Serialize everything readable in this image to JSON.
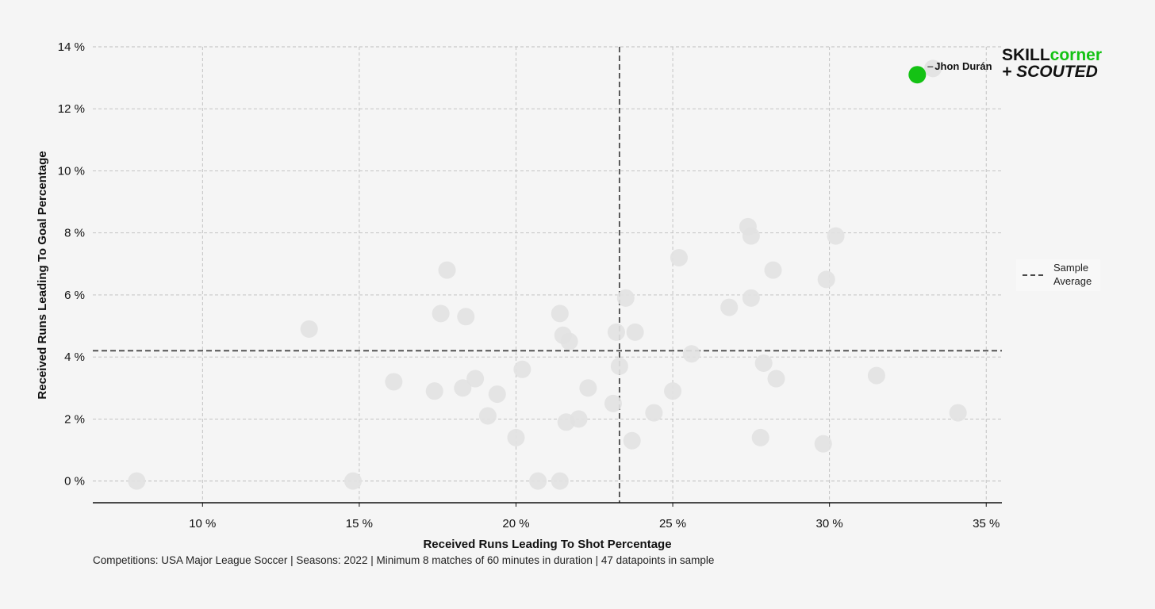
{
  "chart_data": {
    "type": "scatter",
    "title": "",
    "xlabel": "Received Runs Leading To Shot Percentage",
    "ylabel": "Received Runs Leading To Goal Percentage",
    "xlim": [
      6.5,
      35.5
    ],
    "ylim": [
      -0.7,
      14
    ],
    "x_ticks": [
      10,
      15,
      20,
      25,
      30,
      35
    ],
    "y_ticks": [
      0,
      2,
      4,
      6,
      8,
      10,
      12,
      14
    ],
    "x_tick_labels": [
      "10 %",
      "15 %",
      "20 %",
      "25 %",
      "30 %",
      "35 %"
    ],
    "y_tick_labels": [
      "0 %",
      "2 %",
      "4 %",
      "6 %",
      "8 %",
      "10 %",
      "12 %",
      "14 %"
    ],
    "grid": true,
    "reference_lines": {
      "x_average": 23.3,
      "y_average": 4.2,
      "label": "Sample Average"
    },
    "legend": {
      "position": "right",
      "entries": [
        "Sample",
        "Average"
      ]
    },
    "series": [
      {
        "points": [
          [
            7.9,
            0.0
          ],
          [
            14.8,
            0.0
          ],
          [
            13.4,
            4.9
          ],
          [
            16.1,
            3.2
          ],
          [
            17.4,
            2.9
          ],
          [
            17.6,
            5.4
          ],
          [
            17.8,
            6.8
          ],
          [
            18.3,
            3.0
          ],
          [
            18.4,
            5.3
          ],
          [
            18.7,
            3.3
          ],
          [
            19.1,
            2.1
          ],
          [
            19.4,
            2.8
          ],
          [
            20.0,
            1.4
          ],
          [
            20.2,
            3.6
          ],
          [
            20.7,
            0.0
          ],
          [
            21.4,
            0.0
          ],
          [
            21.4,
            5.4
          ],
          [
            21.5,
            4.7
          ],
          [
            21.6,
            1.9
          ],
          [
            21.7,
            4.5
          ],
          [
            22.0,
            2.0
          ],
          [
            22.3,
            3.0
          ],
          [
            23.1,
            2.5
          ],
          [
            23.2,
            4.8
          ],
          [
            23.3,
            3.7
          ],
          [
            23.5,
            5.9
          ],
          [
            23.7,
            1.3
          ],
          [
            23.8,
            4.8
          ],
          [
            24.4,
            2.2
          ],
          [
            25.0,
            2.9
          ],
          [
            25.2,
            7.2
          ],
          [
            25.6,
            4.1
          ],
          [
            26.8,
            5.6
          ],
          [
            27.4,
            8.2
          ],
          [
            27.5,
            7.9
          ],
          [
            27.5,
            5.9
          ],
          [
            27.8,
            1.4
          ],
          [
            27.9,
            3.8
          ],
          [
            28.2,
            6.8
          ],
          [
            28.3,
            3.3
          ],
          [
            29.8,
            1.2
          ],
          [
            29.9,
            6.5
          ],
          [
            30.2,
            7.9
          ],
          [
            31.5,
            3.4
          ],
          [
            34.1,
            2.2
          ],
          [
            33.3,
            13.3
          ]
        ],
        "color": "#e2e2e2"
      },
      {
        "name": "Jhon Durán",
        "points": [
          [
            32.8,
            13.1
          ]
        ],
        "color": "#14c214"
      }
    ],
    "highlight_label": "Jhon Durán"
  },
  "footer": {
    "note": "Competitions: USA Major League Soccer | Seasons: 2022 | Minimum 8 matches of 60 minutes in duration | 47 datapoints in sample"
  },
  "logo": {
    "line1a": "SKILL",
    "line1b": "corner",
    "line2": "+ SCOUTED",
    "accent": "#14c214"
  },
  "colors": {
    "background": "#f5f5f5",
    "grid": "#bdbdbd",
    "reference": "#4a4a4a",
    "highlight": "#14c214",
    "point": "#e2e2e2"
  }
}
